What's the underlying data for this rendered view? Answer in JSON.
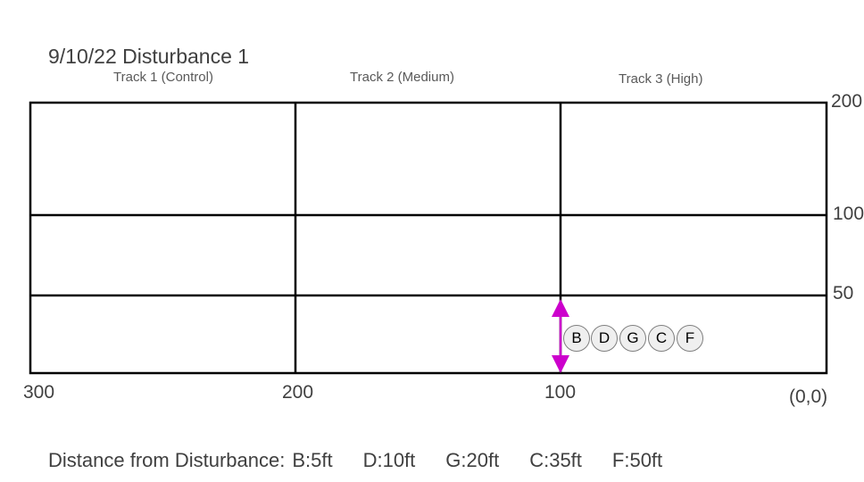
{
  "title": "9/10/22 Disturbance 1",
  "tracks": [
    "Track 1 (Control)",
    "Track 2 (Medium)",
    "Track 3 (High)"
  ],
  "y_labels": [
    "200",
    "100",
    "50"
  ],
  "x_labels": [
    "300",
    "200",
    "100",
    "(0,0)"
  ],
  "nodes": [
    "B",
    "D",
    "G",
    "C",
    "F"
  ],
  "legend": {
    "prefix": "Distance from Disturbance:",
    "items": [
      "B:5ft",
      "D:10ft",
      "G:20ft",
      "C:35ft",
      "F:50ft"
    ]
  },
  "colors": {
    "grid": "#000000",
    "marker": "#cc00cc",
    "node_fill": "#efefef"
  }
}
